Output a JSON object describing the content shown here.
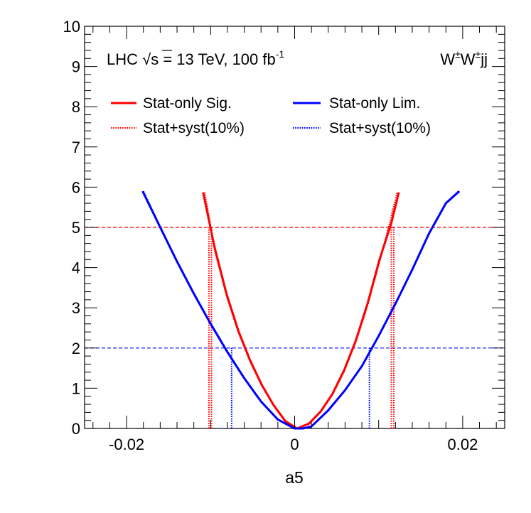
{
  "chart_data": {
    "type": "line",
    "title": "",
    "xlabel": "a5",
    "ylabel": "",
    "xlim": [
      -0.025,
      0.025
    ],
    "ylim": [
      0,
      10
    ],
    "x_ticks": [
      -0.02,
      0,
      0.02
    ],
    "x_tick_labels": [
      "-0.02",
      "0",
      "0.02"
    ],
    "y_ticks": [
      0,
      1,
      2,
      3,
      4,
      5,
      6,
      7,
      8,
      9,
      10
    ],
    "y_tick_labels": [
      "0",
      "1",
      "2",
      "3",
      "4",
      "5",
      "6",
      "7",
      "8",
      "9",
      "10"
    ],
    "annotations": {
      "lhc_prefix": "LHC ",
      "sqrt_symbol": "√",
      "sqrt_arg": "s",
      "energy_text": " = 13 TeV, 100 fb",
      "lumi_exponent": "-1",
      "process_w1": "W",
      "process_pm1": "±",
      "process_w2": "W",
      "process_pm2": "±",
      "process_jj": "jj"
    },
    "legend": [
      {
        "label": "Stat-only Sig.",
        "color": "#ff0000",
        "style": "solid"
      },
      {
        "label": "Stat-only Lim.",
        "color": "#0000ff",
        "style": "solid"
      },
      {
        "label": "Stat+syst(10%)",
        "color": "#ff0000",
        "style": "dotted"
      },
      {
        "label": "Stat+syst(10%)",
        "color": "#0000ff",
        "style": "dotted"
      }
    ],
    "series": [
      {
        "name": "Stat-only Sig.",
        "color": "#ff0000",
        "style": "solid",
        "x": [
          -0.0109,
          -0.0095,
          -0.0081,
          -0.0067,
          -0.0053,
          -0.0039,
          -0.0025,
          -0.0011,
          0.0003,
          0.0017,
          0.0031,
          0.0045,
          0.0059,
          0.0073,
          0.0087,
          0.0101,
          0.0115,
          0.0124
        ],
        "y": [
          5.87,
          4.48,
          3.34,
          2.43,
          1.69,
          1.08,
          0.58,
          0.18,
          0.0,
          0.12,
          0.42,
          0.86,
          1.45,
          2.2,
          3.12,
          4.2,
          5.1,
          5.87
        ]
      },
      {
        "name": "Stat+syst(10%) Sig.",
        "color": "#ff0000",
        "style": "dotted",
        "x": [
          -0.0107,
          -0.0095,
          -0.0081,
          -0.0067,
          -0.0053,
          -0.0039,
          -0.0025,
          -0.0011,
          0.0003,
          0.0017,
          0.0031,
          0.0045,
          0.0059,
          0.0073,
          0.0087,
          0.0101,
          0.0113,
          0.0122
        ],
        "y": [
          5.87,
          4.42,
          3.29,
          2.39,
          1.66,
          1.06,
          0.57,
          0.17,
          0.0,
          0.11,
          0.41,
          0.84,
          1.42,
          2.16,
          3.07,
          4.14,
          5.1,
          5.87
        ]
      },
      {
        "name": "Stat-only Lim.",
        "color": "#0000ff",
        "style": "solid",
        "x": [
          -0.0181,
          -0.016,
          -0.014,
          -0.012,
          -0.01,
          -0.008,
          -0.006,
          -0.004,
          -0.002,
          0.0,
          0.001,
          0.002,
          0.004,
          0.006,
          0.008,
          0.01,
          0.012,
          0.014,
          0.016,
          0.018,
          0.0196
        ],
        "y": [
          5.9,
          5.0,
          4.15,
          3.35,
          2.6,
          1.9,
          1.25,
          0.67,
          0.22,
          0.0,
          0.0,
          0.05,
          0.45,
          0.95,
          1.55,
          2.3,
          3.1,
          3.95,
          4.85,
          5.6,
          5.9
        ]
      },
      {
        "name": "Stat+syst(10%) Lim.",
        "color": "#0000ff",
        "style": "dotted",
        "x": [
          -0.018,
          -0.016,
          -0.014,
          -0.012,
          -0.01,
          -0.008,
          -0.006,
          -0.004,
          -0.002,
          0.0,
          0.001,
          0.002,
          0.004,
          0.006,
          0.008,
          0.01,
          0.012,
          0.014,
          0.016,
          0.018,
          0.0195
        ],
        "y": [
          5.9,
          5.02,
          4.17,
          3.37,
          2.62,
          1.92,
          1.26,
          0.68,
          0.23,
          0.0,
          0.0,
          0.05,
          0.46,
          0.96,
          1.56,
          2.31,
          3.11,
          3.96,
          4.86,
          5.61,
          5.9
        ]
      }
    ],
    "reference_lines": [
      {
        "orientation": "horizontal",
        "y": 5,
        "color": "#ff0000",
        "style": "dashed",
        "x_from": -0.025,
        "x_to": 0.025
      },
      {
        "orientation": "horizontal",
        "y": 2,
        "color": "#0000ff",
        "style": "dashed",
        "x_from": -0.025,
        "x_to": 0.025
      },
      {
        "orientation": "vertical",
        "x": -0.0102,
        "color": "#ff0000",
        "style": "dotted",
        "y_from": 0,
        "y_to": 5
      },
      {
        "orientation": "vertical",
        "x": -0.0099,
        "color": "#ff0000",
        "style": "dotted",
        "y_from": 0,
        "y_to": 5
      },
      {
        "orientation": "vertical",
        "x": 0.0115,
        "color": "#ff0000",
        "style": "dotted",
        "y_from": 0,
        "y_to": 5
      },
      {
        "orientation": "vertical",
        "x": 0.0118,
        "color": "#ff0000",
        "style": "dotted",
        "y_from": 0,
        "y_to": 5
      },
      {
        "orientation": "vertical",
        "x": -0.0075,
        "color": "#0000ff",
        "style": "dotted",
        "y_from": 0,
        "y_to": 2
      },
      {
        "orientation": "vertical",
        "x": 0.0089,
        "color": "#0000ff",
        "style": "dotted",
        "y_from": 0,
        "y_to": 2
      }
    ]
  }
}
